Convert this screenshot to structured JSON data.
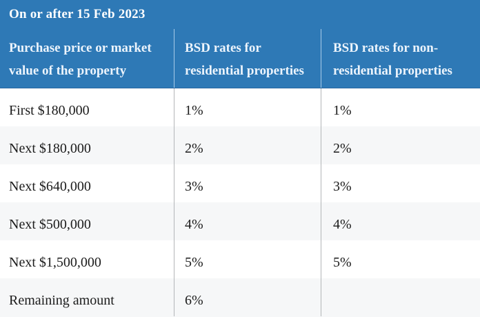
{
  "colors": {
    "header_bg": "#2e79b6",
    "header_bottom_edge": "#27659f",
    "title_text": "#ffffff",
    "column_header_text": "#ecf4fc",
    "header_divider": "#a9cbe8",
    "body_divider": "#b3b6b8",
    "row_bg": "#ffffff",
    "row_alt_bg": "#f6f7f8",
    "body_text": "#1b1b1b"
  },
  "table": {
    "title": "On or after 15 Feb 2023",
    "columns": [
      "Purchase price or market value of the property",
      "BSD rates for residential properties",
      "BSD rates for non-residential properties"
    ],
    "rows": [
      {
        "tier": "First $180,000",
        "residential": "1%",
        "non_residential": "1%"
      },
      {
        "tier": "Next $180,000",
        "residential": "2%",
        "non_residential": "2%"
      },
      {
        "tier": "Next $640,000",
        "residential": "3%",
        "non_residential": "3%"
      },
      {
        "tier": "Next $500,000",
        "residential": "4%",
        "non_residential": "4%"
      },
      {
        "tier": "Next $1,500,000",
        "residential": "5%",
        "non_residential": "5%"
      },
      {
        "tier": "Remaining amount",
        "residential": "6%",
        "non_residential": ""
      }
    ]
  }
}
